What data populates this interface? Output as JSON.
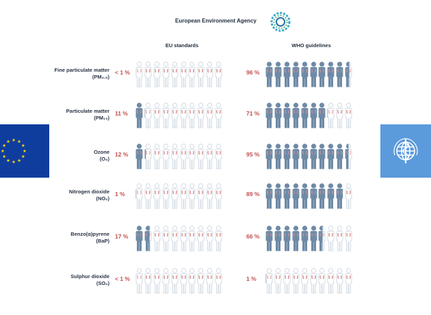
{
  "header": {
    "agency_name": "European Environment Agency",
    "logo_icon": "eea-logo-icon"
  },
  "columns": {
    "eu_title": "EU standards",
    "who_title": "WHO guidelines"
  },
  "colors": {
    "exposed_fill": "#6e8aa6",
    "outline": "#c9d3de",
    "accent_red": "#c0504d",
    "eu_flag_bg": "#0f3d9e",
    "eu_stars": "#f6d10f",
    "who_flag_bg": "#5b9bdc"
  },
  "rows": [
    {
      "name": "Fine particulate matter",
      "sub": "(PM₂.₅)",
      "eu_pct": "< 1 %",
      "who_pct": "96 %",
      "eu_value": 0.005,
      "who_value": 0.96
    },
    {
      "name": "Particulate matter",
      "sub": "(PM₁₀)",
      "eu_pct": "11 %",
      "who_pct": "71 %",
      "eu_value": 0.11,
      "who_value": 0.71
    },
    {
      "name": "Ozone",
      "sub": "(O₃)",
      "eu_pct": "12 %",
      "who_pct": "95 %",
      "eu_value": 0.12,
      "who_value": 0.95
    },
    {
      "name": "Nitrogen dioxide",
      "sub": "(NO₂)",
      "eu_pct": "1 %",
      "who_pct": "89 %",
      "eu_value": 0.01,
      "who_value": 0.89
    },
    {
      "name": "Benzo(α)pyrene",
      "sub": "(BaP)",
      "eu_pct": "17 %",
      "who_pct": "66 %",
      "eu_value": 0.17,
      "who_value": 0.66
    },
    {
      "name": "Sulphur dioxide",
      "sub": "(SO₂)",
      "eu_pct": "< 1 %",
      "who_pct": "1 %",
      "eu_value": 0.005,
      "who_value": 0.01
    }
  ],
  "flags": {
    "eu": "eu-flag-icon",
    "who": "who-flag-icon"
  }
}
